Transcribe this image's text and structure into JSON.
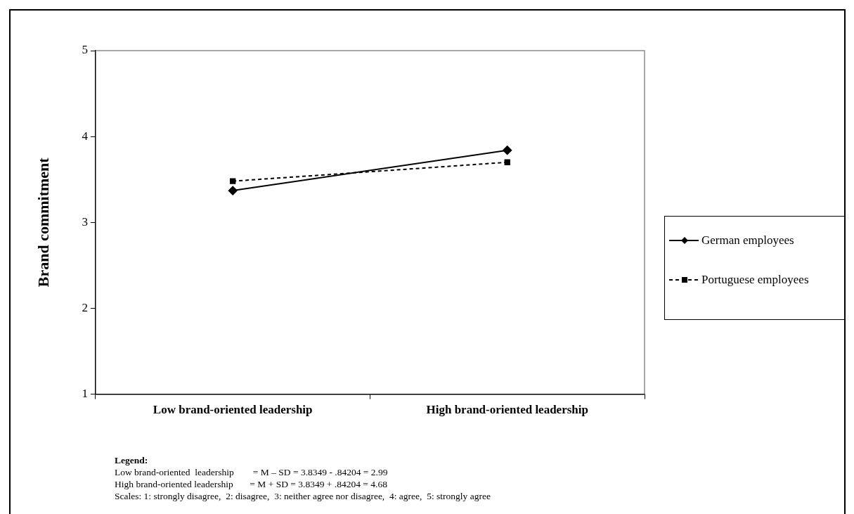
{
  "chart_data": {
    "type": "line",
    "ylabel": "Brand commitment",
    "categories": [
      "Low brand-oriented leadership",
      "High brand-oriented leadership"
    ],
    "series": [
      {
        "name": "German employees",
        "color": "#000000",
        "values": [
          3.37,
          3.84
        ],
        "marker": "diamond",
        "line_style": "solid"
      },
      {
        "name": "Portuguese employees",
        "color": "#000000",
        "values": [
          3.48,
          3.7
        ],
        "marker": "square",
        "line_style": "dashed"
      }
    ],
    "ylim": [
      1,
      5
    ],
    "yticks": [
      1,
      2,
      3,
      4,
      5
    ],
    "grid": false,
    "legend": "right",
    "annotations": [
      "Legend:",
      "Low brand-oriented  leadership        = M – SD = 3.8349 - .84204 = 2.99",
      "High brand-oriented leadership       = M + SD = 3.8349 + .84204 = 4.68",
      "Scales: 1: strongly disagree,  2: disagree,  3: neither agree nor disagree,  4: agree,  5: strongly agree"
    ]
  }
}
